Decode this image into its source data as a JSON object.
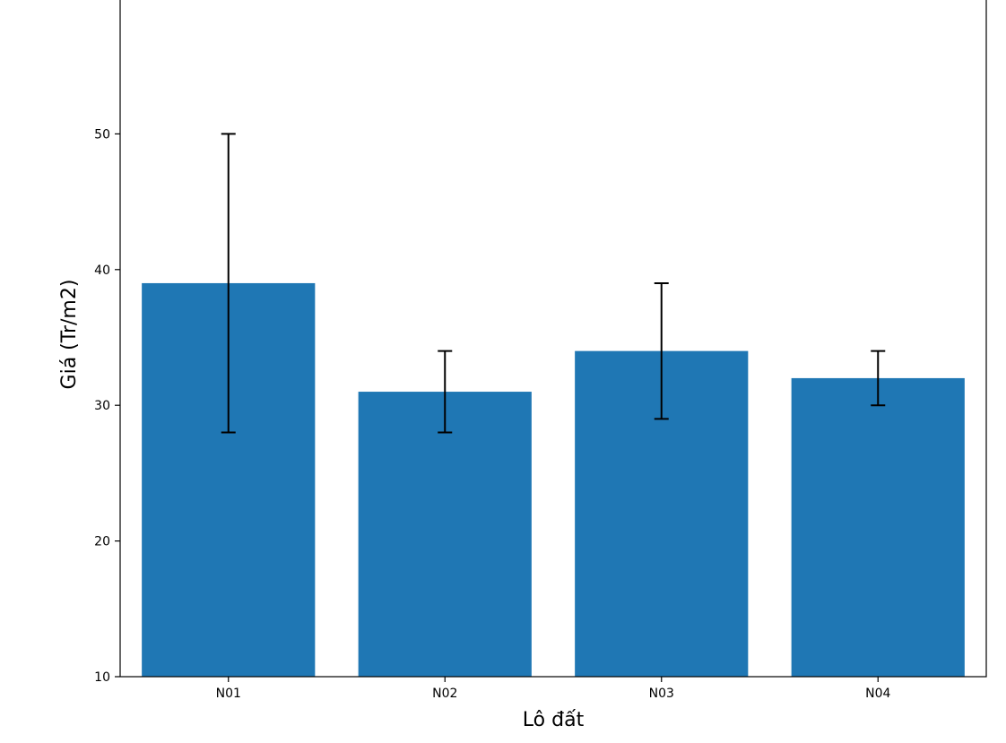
{
  "chart_data": {
    "type": "bar",
    "title": "",
    "xlabel": "Lô đất",
    "ylabel": "Giá (Tr/m2)",
    "categories": [
      "N01",
      "N02",
      "N03",
      "N04"
    ],
    "values": [
      39,
      31,
      34,
      32
    ],
    "error_low": [
      28,
      28,
      29,
      30
    ],
    "error_high": [
      50,
      34,
      39,
      34
    ],
    "ylim": [
      10,
      60
    ],
    "yticks": [
      10,
      20,
      30,
      40,
      50
    ],
    "grid": false,
    "legend": "none",
    "bar_color": "#1f77b4",
    "errorbar_color": "#000000"
  }
}
